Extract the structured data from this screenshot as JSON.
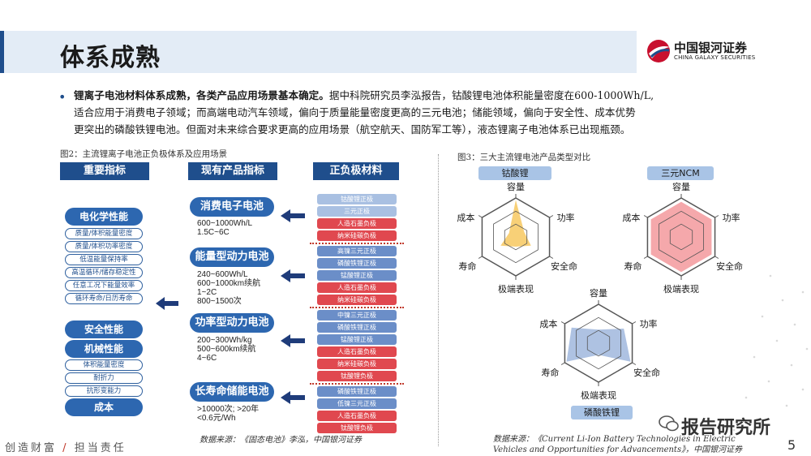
{
  "title": "体系成熟",
  "logo": {
    "cn": "中国银河证券",
    "en": "CHINA GALAXY SECURITIES"
  },
  "paragraph": {
    "bold": "锂离子电池材料体系成熟，各类产品应用场景基本确定。",
    "line1_rest": "据中科院研究员李泓报告，钴酸锂电池体积能量密度在600-1000Wh/L,",
    "line2": "适合应用于消费电子领域；而高端电动汽车领域，偏向于质量能量密度更高的三元电池；储能领域，偏向于安全性、成本优势",
    "line3": "更突出的磷酸铁锂电池。但面对未来综合要求更高的应用场景（航空航天、国防军工等），液态锂离子电池体系已出现瓶颈。"
  },
  "fig2": {
    "caption": "图2：主流锂离子电池正负极体系及应用场景",
    "headers": [
      "重要指标",
      "现有产品指标",
      "正负极材料"
    ],
    "indicators": {
      "group1_title": "电化学性能",
      "group1_items": [
        "质量/体积能量密度",
        "质量/体积功率密度",
        "低温能量保持率",
        "高温循环/储存稳定性",
        "任意工况下能量效率",
        "循环寿命/日历寿命"
      ],
      "group2_titles": [
        "安全性能",
        "机械性能"
      ],
      "group2_items": [
        "体积能量密度",
        "耐折力",
        "抗形变能力"
      ],
      "cost": "成本"
    },
    "products": [
      {
        "name": "消费电子电池",
        "spec": "600~1000Wh/L\n1.5C~6C"
      },
      {
        "name": "能量型动力电池",
        "spec": "240~600Wh/L\n600~1000km续航\n1~2C\n800~1500次"
      },
      {
        "name": "功率型动力电池",
        "spec": "200~300Wh/kg\n500~600km续航\n4~6C"
      },
      {
        "name": "长寿命储能电池",
        "spec": ">10000次; >20年\n<0.6元/Wh"
      }
    ],
    "materials": [
      [
        "钴酸锂正极",
        "三元正极",
        "人造石墨负极",
        "纳米硅碳负极"
      ],
      [
        "高镍三元正极",
        "磷酸铁锂正极",
        "锰酸锂正极",
        "人造石墨负极",
        "纳米硅碳负极"
      ],
      [
        "中镍三元正极",
        "磷酸铁锂正极",
        "锰酸锂正极",
        "人造石墨负极",
        "纳米硅碳负极",
        "钛酸锂负极"
      ],
      [
        "磷酸铁锂正极",
        "低镍三元正极",
        "人造石墨负极",
        "钛酸锂负极"
      ]
    ],
    "source": "数据来源：《固态电池》李泓，中国银河证券"
  },
  "fig3": {
    "caption": "图3：三大主流锂电池产品类型对比",
    "axes": [
      "容量",
      "功率",
      "安全命",
      "极端表现",
      "寿命",
      "成本"
    ],
    "radars": [
      {
        "name": "钴酸锂",
        "fill": "#f5c04a",
        "label_bg": "#a9c4e6"
      },
      {
        "name": "三元NCM",
        "fill": "#f28b8f",
        "label_bg": "#a9c4e6"
      },
      {
        "name": "磷酸铁锂",
        "fill": "#93add8",
        "label_bg": "#a9c4e6"
      }
    ],
    "source_line1": "数据来源：《Current Li-Ion Battery Technologies in Electric",
    "source_line2": "Vehicles and Opportunities for Advancements》，中国银河证券"
  },
  "footer": {
    "left_a": "创造财富",
    "slash": "/",
    "left_b": "担当责任",
    "page": "5",
    "watermark": "报告研究所"
  }
}
